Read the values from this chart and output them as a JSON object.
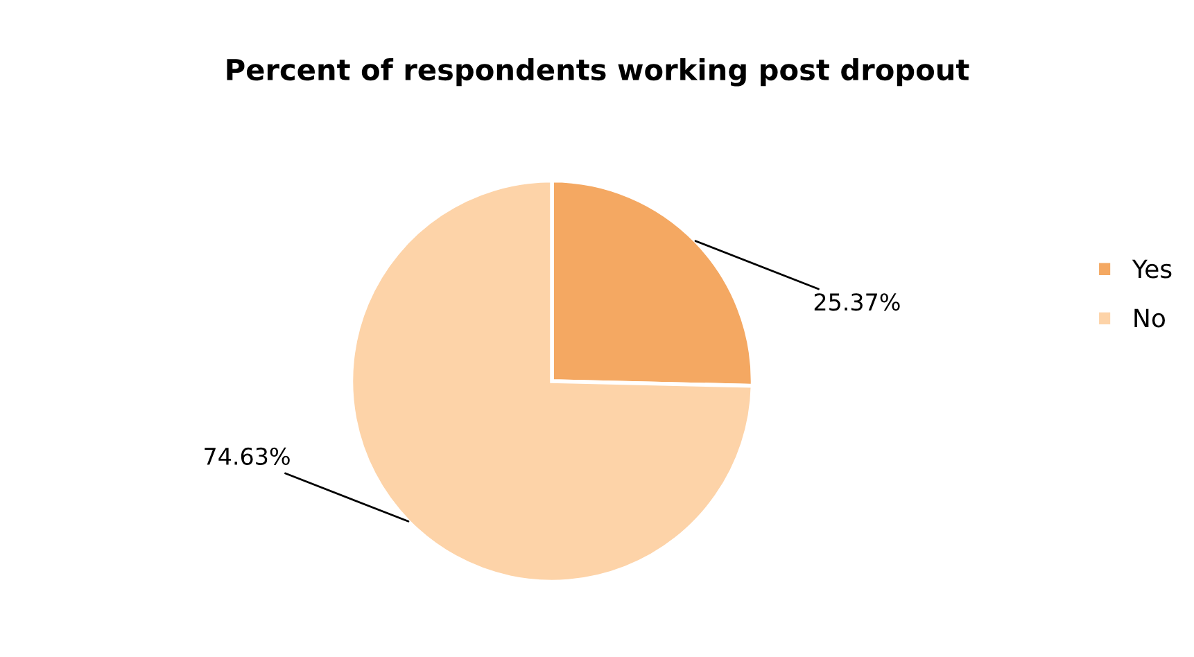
{
  "chart_data": {
    "type": "pie",
    "title": "Percent of respondents working post dropout",
    "categories": [
      "Yes",
      "No"
    ],
    "values": [
      25.37,
      74.63
    ],
    "colors": [
      "#f4a862",
      "#fdd3a8"
    ],
    "value_labels": [
      "25.37%",
      "74.63%"
    ],
    "legend": "right"
  }
}
